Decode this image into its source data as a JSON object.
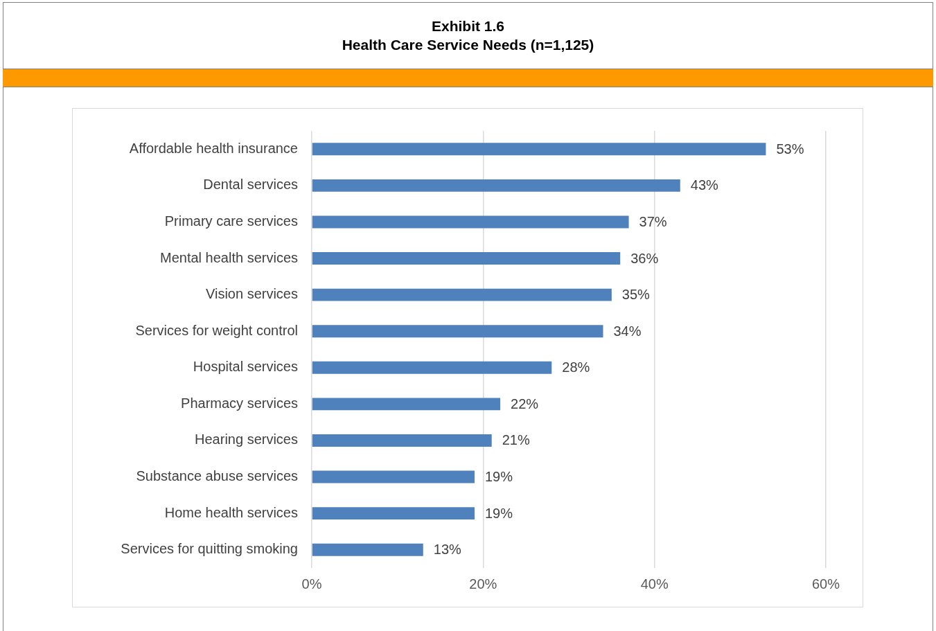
{
  "chart_data": {
    "type": "bar",
    "orientation": "horizontal",
    "title": "Exhibit 1.6",
    "subtitle": "Health Care Service Needs (n=1,125)",
    "categories": [
      "Affordable health insurance",
      "Dental services",
      "Primary care services",
      "Mental health services",
      "Vision services",
      "Services for weight control",
      "Hospital services",
      "Pharmacy services",
      "Hearing services",
      "Substance abuse services",
      "Home health services",
      "Services for quitting smoking"
    ],
    "values": [
      53,
      43,
      37,
      36,
      35,
      34,
      28,
      22,
      21,
      19,
      19,
      13
    ],
    "value_labels": [
      "53%",
      "43%",
      "37%",
      "36%",
      "35%",
      "34%",
      "28%",
      "22%",
      "21%",
      "19%",
      "19%",
      "13%"
    ],
    "color": "#4f81bd",
    "xlim": [
      0,
      60
    ],
    "xticks": [
      {
        "value": 0,
        "label": "0%"
      },
      {
        "value": 20,
        "label": "20%"
      },
      {
        "value": 40,
        "label": "40%"
      },
      {
        "value": 60,
        "label": "60%"
      }
    ],
    "grid": "x",
    "legend": false
  }
}
